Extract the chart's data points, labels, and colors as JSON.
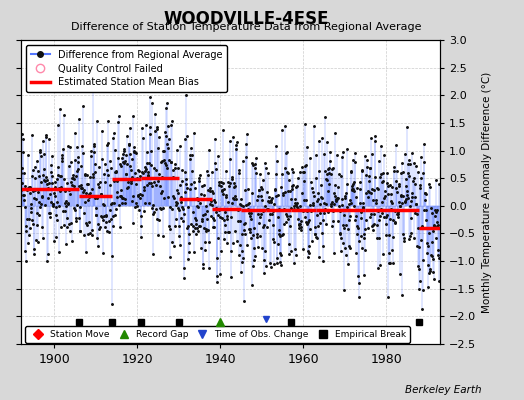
{
  "title": "WOODVILLE-4ESE",
  "subtitle": "Difference of Station Temperature Data from Regional Average",
  "ylabel_right": "Monthly Temperature Anomaly Difference (°C)",
  "ylim": [
    -2.5,
    3.0
  ],
  "xlim": [
    1892,
    1993
  ],
  "xticks": [
    1900,
    1920,
    1940,
    1960,
    1980
  ],
  "yticks": [
    -2.5,
    -2,
    -1.5,
    -1,
    -0.5,
    0,
    0.5,
    1,
    1.5,
    2,
    2.5,
    3
  ],
  "background_color": "#d8d8d8",
  "plot_bg_color": "#ffffff",
  "line_color": "#5577ff",
  "dot_color": "#111111",
  "bias_color": "#ff0000",
  "seed": 42,
  "start_year": 1892,
  "end_year": 1993,
  "bias_segments": [
    {
      "x_start": 1892,
      "x_end": 1906,
      "bias": 0.3
    },
    {
      "x_start": 1906,
      "x_end": 1914,
      "bias": 0.18
    },
    {
      "x_start": 1914,
      "x_end": 1921,
      "bias": 0.48
    },
    {
      "x_start": 1921,
      "x_end": 1930,
      "bias": 0.5
    },
    {
      "x_start": 1930,
      "x_end": 1938,
      "bias": 0.12
    },
    {
      "x_start": 1938,
      "x_end": 1945,
      "bias": -0.05
    },
    {
      "x_start": 1945,
      "x_end": 1951,
      "bias": -0.07
    },
    {
      "x_start": 1951,
      "x_end": 1957,
      "bias": -0.07
    },
    {
      "x_start": 1957,
      "x_end": 1963,
      "bias": -0.07
    },
    {
      "x_start": 1963,
      "x_end": 1975,
      "bias": -0.07
    },
    {
      "x_start": 1975,
      "x_end": 1988,
      "bias": -0.07
    },
    {
      "x_start": 1988,
      "x_end": 1993,
      "bias": -0.4
    }
  ],
  "empirical_breaks": [
    1906,
    1914,
    1921,
    1930,
    1957,
    1988
  ],
  "record_gaps": [
    1940
  ],
  "time_obs_changes": [
    1951
  ],
  "station_moves": [],
  "qc_failed": [],
  "watermark": "Berkeley Earth",
  "noise_std": 0.6
}
